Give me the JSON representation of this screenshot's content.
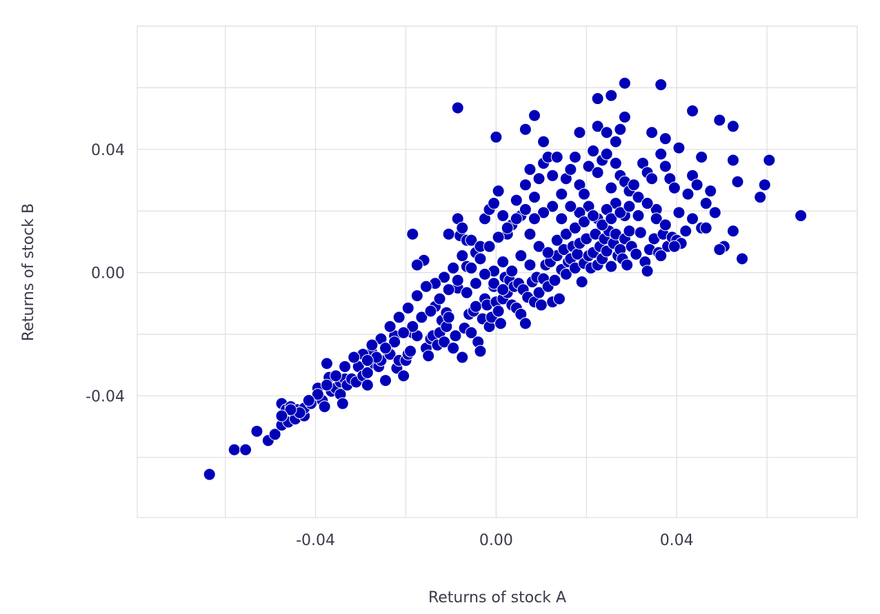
{
  "chart_data": {
    "type": "scatter",
    "title": "",
    "xlabel": "Returns of stock A",
    "ylabel": "Returns of stock B",
    "xlim": [
      -0.0795,
      0.08
    ],
    "ylim": [
      -0.0795,
      0.08
    ],
    "x_ticks": [
      -0.04,
      0.0,
      0.04
    ],
    "y_ticks": [
      -0.04,
      0.0,
      0.04
    ],
    "x_tick_labels": [
      "-0.04",
      "0.00",
      "0.04"
    ],
    "y_tick_labels": [
      "-0.04",
      "0.00",
      "0.04"
    ],
    "grid_minor_step": 0.02,
    "grid": true,
    "marker_color": "#0000b8",
    "points": [
      [
        -0.0635,
        -0.0655
      ],
      [
        -0.058,
        -0.0575
      ],
      [
        -0.0555,
        -0.0575
      ],
      [
        -0.053,
        -0.0515
      ],
      [
        -0.0505,
        -0.0545
      ],
      [
        -0.049,
        -0.0525
      ],
      [
        -0.0475,
        -0.0495
      ],
      [
        -0.0475,
        -0.0425
      ],
      [
        -0.0465,
        -0.0445
      ],
      [
        -0.046,
        -0.0485
      ],
      [
        -0.0455,
        -0.0435
      ],
      [
        -0.0445,
        -0.0475
      ],
      [
        -0.044,
        -0.0445
      ],
      [
        -0.0425,
        -0.0465
      ],
      [
        -0.0425,
        -0.044
      ],
      [
        -0.041,
        -0.0425
      ],
      [
        -0.0395,
        -0.0375
      ],
      [
        -0.0385,
        -0.0415
      ],
      [
        -0.038,
        -0.0435
      ],
      [
        -0.0375,
        -0.0295
      ],
      [
        -0.037,
        -0.034
      ],
      [
        -0.0365,
        -0.0385
      ],
      [
        -0.0355,
        -0.0375
      ],
      [
        -0.0345,
        -0.0355
      ],
      [
        -0.0345,
        -0.0395
      ],
      [
        -0.034,
        -0.0425
      ],
      [
        -0.0335,
        -0.0345
      ],
      [
        -0.033,
        -0.0365
      ],
      [
        -0.032,
        -0.0345
      ],
      [
        -0.031,
        -0.0355
      ],
      [
        -0.0305,
        -0.0305
      ],
      [
        -0.0295,
        -0.0335
      ],
      [
        -0.0285,
        -0.0325
      ],
      [
        -0.0285,
        -0.0365
      ],
      [
        -0.0275,
        -0.024
      ],
      [
        -0.0275,
        -0.026
      ],
      [
        -0.027,
        -0.0295
      ],
      [
        -0.026,
        -0.0305
      ],
      [
        -0.0255,
        -0.0285
      ],
      [
        -0.0245,
        -0.035
      ],
      [
        -0.024,
        -0.0255
      ],
      [
        -0.0235,
        -0.0265
      ],
      [
        -0.0225,
        -0.0205
      ],
      [
        -0.022,
        -0.031
      ],
      [
        -0.0215,
        -0.0285
      ],
      [
        -0.0205,
        -0.0335
      ],
      [
        -0.02,
        -0.0285
      ],
      [
        -0.0195,
        -0.0265
      ],
      [
        -0.019,
        -0.0255
      ],
      [
        -0.0185,
        -0.0195
      ],
      [
        -0.0175,
        -0.0205
      ],
      [
        -0.016,
        0.004
      ],
      [
        -0.0155,
        -0.0245
      ],
      [
        -0.015,
        -0.027
      ],
      [
        -0.0145,
        -0.0215
      ],
      [
        -0.014,
        -0.0205
      ],
      [
        -0.0135,
        -0.011
      ],
      [
        -0.013,
        -0.0235
      ],
      [
        -0.0125,
        -0.0195
      ],
      [
        -0.012,
        -0.0155
      ],
      [
        -0.0115,
        -0.0225
      ],
      [
        -0.011,
        -0.013
      ],
      [
        -0.011,
        -0.0175
      ],
      [
        -0.0105,
        -0.0145
      ],
      [
        -0.0095,
        -0.0245
      ],
      [
        -0.009,
        -0.0205
      ],
      [
        -0.0085,
        -0.005
      ],
      [
        -0.008,
        0.012
      ],
      [
        -0.0075,
        -0.0275
      ],
      [
        -0.007,
        -0.018
      ],
      [
        -0.0065,
        0.002
      ],
      [
        -0.006,
        -0.0135
      ],
      [
        -0.0055,
        -0.0195
      ],
      [
        -0.005,
        -0.0125
      ],
      [
        -0.0045,
        -0.011
      ],
      [
        -0.004,
        -0.0225
      ],
      [
        -0.0035,
        -0.0255
      ],
      [
        -0.003,
        -0.015
      ],
      [
        -0.0025,
        -0.0085
      ],
      [
        -0.002,
        -0.0105
      ],
      [
        -0.0015,
        -0.0175
      ],
      [
        -0.001,
        -0.0145
      ],
      [
        -0.0005,
        -0.0045
      ],
      [
        0.0,
        -0.0095
      ],
      [
        0.0005,
        -0.0125
      ],
      [
        0.001,
        -0.0165
      ],
      [
        0.0015,
        -0.0085
      ],
      [
        0.002,
        -0.0015
      ],
      [
        0.0025,
        -0.0065
      ],
      [
        0.003,
        -0.0025
      ],
      [
        0.0035,
        -0.0105
      ],
      [
        0.004,
        -0.0045
      ],
      [
        0.0045,
        -0.0115
      ],
      [
        0.005,
        -0.0035
      ],
      [
        0.0055,
        -0.0135
      ],
      [
        0.006,
        -0.0055
      ],
      [
        0.0065,
        -0.0165
      ],
      [
        0.007,
        -0.008
      ],
      [
        0.0075,
        0.0125
      ],
      [
        0.008,
        -0.003
      ],
      [
        0.0085,
        -0.0095
      ],
      [
        0.009,
        -0.0015
      ],
      [
        0.0095,
        -0.0065
      ],
      [
        0.01,
        -0.0105
      ],
      [
        0.0105,
        -0.002
      ],
      [
        0.011,
        0.0025
      ],
      [
        0.0115,
        -0.0045
      ],
      [
        0.012,
        0.0035
      ],
      [
        0.0125,
        -0.0095
      ],
      [
        0.013,
        -0.0025
      ],
      [
        0.0135,
        0.0055
      ],
      [
        0.014,
        -0.0085
      ],
      [
        0.0145,
        0.001
      ],
      [
        0.015,
        0.0075
      ],
      [
        0.0155,
        -0.0005
      ],
      [
        0.016,
        0.0035
      ],
      [
        0.0165,
        0.0045
      ],
      [
        0.017,
        0.0085
      ],
      [
        0.0175,
        0.0015
      ],
      [
        0.018,
        0.006
      ],
      [
        0.0185,
        0.0095
      ],
      [
        0.019,
        -0.003
      ],
      [
        0.0195,
        0.003
      ],
      [
        0.02,
        0.011
      ],
      [
        0.0205,
        0.0055
      ],
      [
        0.021,
        0.0015
      ],
      [
        0.0215,
        0.0065
      ],
      [
        0.022,
        0.0125
      ],
      [
        0.0225,
        0.0025
      ],
      [
        0.023,
        0.0085
      ],
      [
        0.0235,
        0.0045
      ],
      [
        0.024,
        0.011
      ],
      [
        0.0245,
        0.007
      ],
      [
        0.025,
        0.0135
      ],
      [
        0.0255,
        0.002
      ],
      [
        0.026,
        0.0095
      ],
      [
        0.0265,
        0.0125
      ],
      [
        0.027,
        0.0055
      ],
      [
        0.0275,
        0.0075
      ],
      [
        0.028,
        0.0045
      ],
      [
        0.0285,
        0.011
      ],
      [
        0.029,
        0.0025
      ],
      [
        0.0295,
        0.0135
      ],
      [
        0.03,
        0.0085
      ],
      [
        0.031,
        0.006
      ],
      [
        0.032,
        0.013
      ],
      [
        0.033,
        0.0035
      ],
      [
        0.034,
        0.0075
      ],
      [
        0.035,
        0.011
      ],
      [
        0.036,
        0.0065
      ],
      [
        0.037,
        0.0125
      ],
      [
        0.038,
        0.0085
      ],
      [
        0.039,
        0.0115
      ],
      [
        0.04,
        0.0105
      ],
      [
        0.041,
        0.0095
      ],
      [
        0.042,
        0.0135
      ],
      [
        -0.0085,
        0.0535
      ],
      [
        0.0,
        0.044
      ],
      [
        0.0065,
        0.0465
      ],
      [
        0.0085,
        0.051
      ],
      [
        0.0105,
        0.0425
      ],
      [
        0.0185,
        0.0455
      ],
      [
        0.0225,
        0.0565
      ],
      [
        0.0255,
        0.0575
      ],
      [
        0.0285,
        0.0615
      ],
      [
        0.0365,
        0.061
      ],
      [
        0.0435,
        0.0525
      ],
      [
        0.0495,
        0.0495
      ],
      [
        0.0525,
        0.0475
      ],
      [
        0.0225,
        0.0475
      ],
      [
        0.0245,
        0.0455
      ],
      [
        0.0265,
        0.0425
      ],
      [
        0.0275,
        0.0465
      ],
      [
        0.0285,
        0.0505
      ],
      [
        0.0345,
        0.0455
      ],
      [
        0.0375,
        0.0435
      ],
      [
        0.0405,
        0.0405
      ],
      [
        0.0455,
        0.0375
      ],
      [
        0.0525,
        0.0365
      ],
      [
        0.0605,
        0.0365
      ],
      [
        0.0595,
        0.0285
      ],
      [
        0.0535,
        0.0295
      ],
      [
        0.0585,
        0.0245
      ],
      [
        0.0675,
        0.0185
      ],
      [
        0.0435,
        0.0315
      ],
      [
        0.0475,
        0.0265
      ],
      [
        0.0445,
        0.0285
      ],
      [
        0.0465,
        0.0225
      ],
      [
        0.0425,
        0.0255
      ],
      [
        0.0485,
        0.0195
      ],
      [
        0.0435,
        0.0175
      ],
      [
        0.0455,
        0.0145
      ],
      [
        0.0465,
        0.0145
      ],
      [
        0.0525,
        0.0135
      ],
      [
        0.0505,
        0.0085
      ],
      [
        0.0495,
        0.0075
      ],
      [
        0.0545,
        0.0045
      ],
      [
        0.0335,
        0.0005
      ],
      [
        0.0365,
        0.0055
      ],
      [
        0.0395,
        0.0085
      ],
      [
        -0.0185,
        0.0125
      ],
      [
        -0.0175,
        0.0025
      ],
      [
        -0.0105,
        0.0125
      ],
      [
        -0.0085,
        0.0175
      ],
      [
        -0.0075,
        0.0145
      ],
      [
        -0.0065,
        0.0105
      ],
      [
        -0.0055,
        0.0105
      ],
      [
        -0.0045,
        0.0065
      ],
      [
        -0.0035,
        0.0085
      ],
      [
        -0.0025,
        0.0175
      ],
      [
        -0.0015,
        0.0205
      ],
      [
        -0.0005,
        0.0225
      ],
      [
        0.0005,
        0.0265
      ],
      [
        0.0015,
        0.0185
      ],
      [
        0.0025,
        0.0125
      ],
      [
        0.0035,
        0.0155
      ],
      [
        0.0045,
        0.0235
      ],
      [
        0.0055,
        0.0185
      ],
      [
        0.0065,
        0.0285
      ],
      [
        0.0075,
        0.0335
      ],
      [
        0.0085,
        0.0245
      ],
      [
        0.0095,
        0.0305
      ],
      [
        0.0105,
        0.0355
      ],
      [
        0.0115,
        0.0375
      ],
      [
        0.0125,
        0.0315
      ],
      [
        0.0135,
        0.0375
      ],
      [
        0.0145,
        0.0255
      ],
      [
        0.0155,
        0.0305
      ],
      [
        0.0165,
        0.0335
      ],
      [
        0.0175,
        0.0375
      ],
      [
        0.0185,
        0.0285
      ],
      [
        0.0195,
        0.0255
      ],
      [
        0.0205,
        0.0345
      ],
      [
        0.0215,
        0.0395
      ],
      [
        0.0225,
        0.0325
      ],
      [
        0.0235,
        0.0365
      ],
      [
        0.0245,
        0.0385
      ],
      [
        0.0255,
        0.0275
      ],
      [
        0.0265,
        0.0355
      ],
      [
        0.0275,
        0.0315
      ],
      [
        0.0285,
        0.0295
      ],
      [
        0.0295,
        0.0265
      ],
      [
        0.0305,
        0.0285
      ],
      [
        0.0315,
        0.0245
      ],
      [
        0.0325,
        0.0355
      ],
      [
        0.0335,
        0.0325
      ],
      [
        0.0345,
        0.0305
      ],
      [
        0.0355,
        0.0205
      ],
      [
        0.0365,
        0.0385
      ],
      [
        0.0375,
        0.0345
      ],
      [
        0.0385,
        0.0305
      ],
      [
        0.0395,
        0.0275
      ],
      [
        0.0405,
        0.0195
      ],
      [
        0.0285,
        0.0185
      ],
      [
        0.0265,
        0.0225
      ],
      [
        0.0245,
        0.0205
      ],
      [
        0.0225,
        0.0175
      ],
      [
        0.0205,
        0.0215
      ],
      [
        0.0185,
        0.0195
      ],
      [
        0.0165,
        0.0215
      ],
      [
        0.0145,
        0.0175
      ],
      [
        0.0125,
        0.0215
      ],
      [
        0.0105,
        0.0195
      ],
      [
        0.0085,
        0.0175
      ],
      [
        0.0065,
        0.0205
      ],
      [
        0.0045,
        0.0175
      ],
      [
        0.0025,
        0.0145
      ],
      [
        0.0005,
        0.0115
      ],
      [
        -0.0015,
        0.0085
      ],
      [
        -0.0035,
        0.0045
      ],
      [
        -0.0055,
        0.0015
      ],
      [
        -0.0075,
        0.0055
      ],
      [
        -0.0095,
        0.0015
      ],
      [
        -0.0115,
        -0.0015
      ],
      [
        -0.0135,
        -0.0035
      ],
      [
        -0.0155,
        -0.0045
      ],
      [
        -0.0175,
        -0.0075
      ],
      [
        -0.0195,
        -0.0115
      ],
      [
        -0.0215,
        -0.0145
      ],
      [
        -0.0235,
        -0.0175
      ],
      [
        -0.0255,
        -0.0215
      ],
      [
        -0.0275,
        -0.0235
      ],
      [
        -0.0295,
        -0.0265
      ],
      [
        -0.0315,
        -0.0275
      ],
      [
        -0.0335,
        -0.0305
      ],
      [
        -0.0355,
        -0.0335
      ],
      [
        -0.0375,
        -0.0365
      ],
      [
        -0.0395,
        -0.0395
      ],
      [
        -0.0415,
        -0.0415
      ],
      [
        -0.0435,
        -0.0455
      ],
      [
        -0.0455,
        -0.0445
      ],
      [
        -0.0475,
        -0.0465
      ],
      [
        -0.0005,
        0.0005
      ],
      [
        0.0015,
        0.0035
      ],
      [
        0.0035,
        0.0005
      ],
      [
        0.0055,
        0.0055
      ],
      [
        0.0075,
        0.0025
      ],
      [
        0.0095,
        0.0085
      ],
      [
        0.0115,
        0.0065
      ],
      [
        0.0135,
        0.0105
      ],
      [
        0.0155,
        0.0125
      ],
      [
        0.0175,
        0.0145
      ],
      [
        0.0195,
        0.0165
      ],
      [
        0.0215,
        0.0185
      ],
      [
        0.0235,
        0.0155
      ],
      [
        0.0255,
        0.0175
      ],
      [
        0.0275,
        0.0195
      ],
      [
        0.0295,
        0.0215
      ],
      [
        0.0315,
        0.0185
      ],
      [
        0.0335,
        0.0225
      ],
      [
        0.0355,
        0.0175
      ],
      [
        0.0375,
        0.0155
      ],
      [
        -0.0125,
        -0.0085
      ],
      [
        -0.0105,
        -0.0055
      ],
      [
        -0.0085,
        -0.0025
      ],
      [
        -0.0065,
        -0.0065
      ],
      [
        -0.0045,
        -0.0035
      ],
      [
        -0.0025,
        -0.0005
      ],
      [
        -0.0005,
        -0.0035
      ],
      [
        0.0015,
        -0.0055
      ],
      [
        -0.0185,
        -0.0175
      ],
      [
        -0.0165,
        -0.0145
      ],
      [
        -0.0145,
        -0.0125
      ],
      [
        -0.0205,
        -0.0195
      ],
      [
        -0.0225,
        -0.0225
      ],
      [
        -0.0245,
        -0.0245
      ],
      [
        -0.0265,
        -0.0275
      ],
      [
        -0.0285,
        -0.0285
      ]
    ]
  }
}
